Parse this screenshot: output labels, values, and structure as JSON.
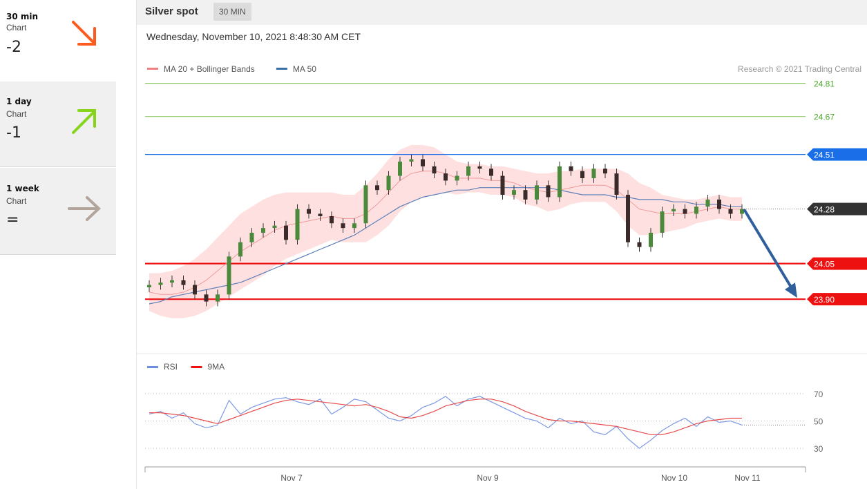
{
  "sidebar": {
    "items": [
      {
        "timeframe": "30 min",
        "sub": "Chart",
        "value": "-2",
        "arrow": "down-right",
        "color": "#ff5a1e"
      },
      {
        "timeframe": "1 day",
        "sub": "Chart",
        "value": "-1",
        "arrow": "up-right",
        "color": "#86d41c"
      },
      {
        "timeframe": "1 week",
        "sub": "Chart",
        "value": "=",
        "arrow": "right",
        "color": "#b3a59b"
      }
    ]
  },
  "header": {
    "title": "Silver spot",
    "interval": "30 MIN"
  },
  "datetime": "Wednesday, November 10, 2021 8:48:30 AM CET",
  "chart_data": {
    "type": "line",
    "title": "Silver spot",
    "legend": [
      {
        "name": "MA 20 + Bollinger Bands",
        "color": "#f08080"
      },
      {
        "name": "MA 50",
        "color": "#3a6ea5"
      }
    ],
    "credit": "Research © 2021 Trading Central",
    "x_ticks": [
      "Nov 7",
      "Nov 9",
      "Nov 10",
      "Nov 11"
    ],
    "ylim": [
      23.72,
      24.87
    ],
    "levels": [
      {
        "value": 24.81,
        "label": "24.81",
        "kind": "target",
        "color": "#8cc864"
      },
      {
        "value": 24.67,
        "label": "24.67",
        "kind": "target",
        "color": "#8cc864"
      },
      {
        "value": 24.51,
        "label": "24.51",
        "kind": "pivot",
        "color": "#1a6fe8"
      },
      {
        "value": 24.28,
        "label": "24.28",
        "kind": "last",
        "color": "#333333"
      },
      {
        "value": 24.05,
        "label": "24.05",
        "kind": "support",
        "color": "#ee1111"
      },
      {
        "value": 23.9,
        "label": "23.90",
        "kind": "support",
        "color": "#ee1111"
      }
    ],
    "price": [
      23.96,
      23.97,
      23.98,
      23.96,
      23.92,
      23.89,
      23.92,
      24.08,
      24.14,
      24.18,
      24.2,
      24.21,
      24.15,
      24.28,
      24.26,
      24.25,
      24.22,
      24.2,
      24.22,
      24.38,
      24.36,
      24.42,
      24.48,
      24.49,
      24.46,
      24.43,
      24.4,
      24.42,
      24.46,
      24.45,
      24.42,
      24.34,
      24.36,
      24.32,
      24.38,
      24.33,
      24.46,
      24.44,
      24.41,
      24.45,
      24.43,
      24.34,
      24.14,
      24.12,
      24.18,
      24.27,
      24.28,
      24.26,
      24.29,
      24.32,
      24.28,
      24.26,
      24.28
    ],
    "ma20": [
      23.93,
      23.92,
      23.92,
      23.93,
      23.95,
      23.98,
      24.02,
      24.06,
      24.1,
      24.13,
      24.16,
      24.19,
      24.21,
      24.22,
      24.23,
      24.24,
      24.25,
      24.24,
      24.24,
      24.26,
      24.3,
      24.35,
      24.4,
      24.43,
      24.44,
      24.44,
      24.43,
      24.41,
      24.41,
      24.41,
      24.4,
      24.4,
      24.39,
      24.37,
      24.36,
      24.35,
      24.36,
      24.37,
      24.38,
      24.38,
      24.38,
      24.36,
      24.32,
      24.28,
      24.27,
      24.26,
      24.26,
      24.26,
      24.27,
      24.28,
      24.29,
      24.28,
      24.28
    ],
    "ma50": [
      23.88,
      23.89,
      23.91,
      23.92,
      23.93,
      23.94,
      23.95,
      23.96,
      23.97,
      23.99,
      24.01,
      24.03,
      24.05,
      24.07,
      24.09,
      24.11,
      24.13,
      24.15,
      24.17,
      24.2,
      24.23,
      24.26,
      24.29,
      24.31,
      24.33,
      24.34,
      24.35,
      24.36,
      24.36,
      24.37,
      24.37,
      24.37,
      24.37,
      24.37,
      24.37,
      24.37,
      24.36,
      24.35,
      24.34,
      24.34,
      24.34,
      24.33,
      24.33,
      24.32,
      24.32,
      24.32,
      24.31,
      24.31,
      24.3,
      24.3,
      24.3,
      24.29,
      24.29
    ],
    "band_width": [
      0.08,
      0.09,
      0.1,
      0.11,
      0.12,
      0.13,
      0.14,
      0.15,
      0.16,
      0.16,
      0.16,
      0.15,
      0.14,
      0.13,
      0.12,
      0.11,
      0.1,
      0.1,
      0.1,
      0.12,
      0.13,
      0.14,
      0.13,
      0.12,
      0.11,
      0.1,
      0.08,
      0.07,
      0.06,
      0.06,
      0.06,
      0.06,
      0.06,
      0.07,
      0.07,
      0.08,
      0.08,
      0.07,
      0.07,
      0.07,
      0.07,
      0.09,
      0.11,
      0.11,
      0.1,
      0.08,
      0.07,
      0.06,
      0.05,
      0.05,
      0.05,
      0.05,
      0.05
    ],
    "forecast": {
      "from": 24.28,
      "to": 23.9
    },
    "rsi": {
      "legend": [
        {
          "name": "RSI",
          "color": "#6d8ee0"
        },
        {
          "name": "9MA",
          "color": "#ee1111"
        }
      ],
      "levels": [
        70,
        50,
        30
      ],
      "ylim": [
        22,
        80
      ],
      "rsi": [
        55,
        57,
        52,
        56,
        48,
        45,
        47,
        65,
        55,
        60,
        63,
        66,
        67,
        64,
        62,
        66,
        55,
        60,
        66,
        64,
        58,
        52,
        50,
        54,
        60,
        63,
        68,
        61,
        66,
        68,
        64,
        60,
        56,
        52,
        50,
        45,
        52,
        48,
        50,
        42,
        40,
        46,
        37,
        30,
        36,
        43,
        48,
        52,
        46,
        53,
        49,
        50,
        47
      ],
      "ma9": [
        56,
        56,
        55,
        54,
        52,
        50,
        48,
        51,
        54,
        57,
        60,
        63,
        65,
        66,
        65,
        64,
        63,
        62,
        61,
        62,
        60,
        57,
        53,
        52,
        54,
        57,
        61,
        63,
        65,
        66,
        66,
        64,
        61,
        57,
        54,
        51,
        50,
        50,
        49,
        48,
        47,
        46,
        44,
        42,
        40,
        40,
        42,
        45,
        48,
        50,
        51,
        52,
        52
      ]
    }
  }
}
